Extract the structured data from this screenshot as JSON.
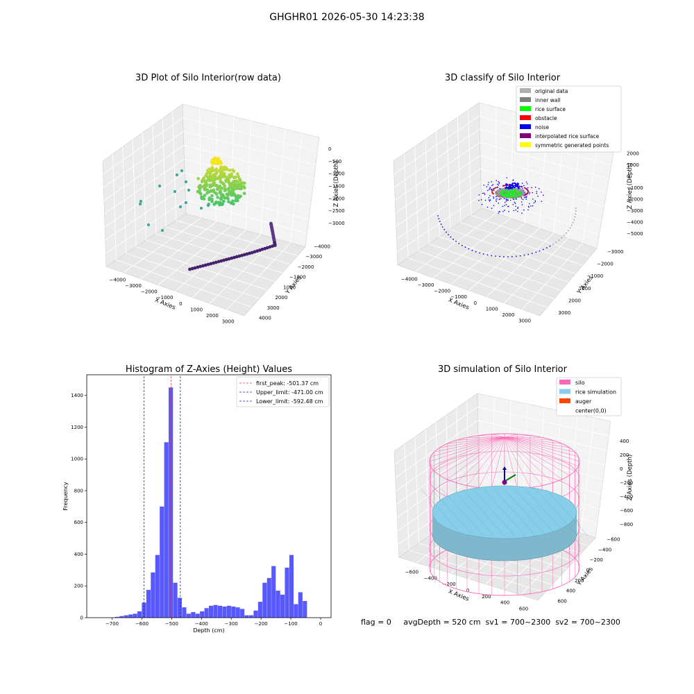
{
  "figure": {
    "title": "GHGHR01 2026-05-30 14:23:38",
    "status_text": "flag = 0     avgDepth = 520 cm  sv1 = 700~2300  sv2 = 700~2300"
  },
  "colors": {
    "hist_bar": "#4f4fff",
    "first_peak": "#e8322a",
    "limit_line": "#1f1fd0",
    "pane": "#f2f2f2",
    "silo": "#ff69b4",
    "rice": "#87ceeb",
    "auger": "#ff4500"
  },
  "chart_data": [
    {
      "type": "scatter",
      "subtype": "3d",
      "title": "3D Plot of Silo Interior(row data)",
      "xlabel": "X Axies",
      "ylabel": "Y Axies",
      "zlabel": "Z Axies (Depth)",
      "xticks": [
        "−4000",
        "−3000",
        "−2000",
        "−1000",
        "0",
        "1000",
        "2000",
        "3000"
      ],
      "yticks": [
        "4000",
        "3000",
        "2000",
        "1000",
        "−1000",
        "−2000",
        "−3000",
        "−4000"
      ],
      "zticks": [
        "0",
        "−500",
        "−1000",
        "−1500",
        "−2000",
        "−2500",
        "−3000"
      ],
      "colormap": "viridis",
      "grid": true
    },
    {
      "type": "scatter",
      "subtype": "3d",
      "title": "3D classify of Silo Interior",
      "xlabel": "X Axies",
      "ylabel": "Y Axies",
      "zlabel": "Z Axies (Depth)",
      "xticks": [
        "−4000",
        "−3000",
        "−2000",
        "−1000",
        "0",
        "1000",
        "2000",
        "3000"
      ],
      "yticks": [
        "3000",
        "2000",
        "1000",
        "−1000",
        "−2000",
        "−3000"
      ],
      "zticks": [
        "2000",
        "1000",
        "0",
        "−1000",
        "−2000",
        "−3000",
        "−4000",
        "−5000"
      ],
      "legend_position": "top-right",
      "legend": [
        {
          "label": "original data",
          "color": "#b0b0b0"
        },
        {
          "label": "inner wall",
          "color": "#808080"
        },
        {
          "label": "rice surface",
          "color": "#00ff00"
        },
        {
          "label": "obstacle",
          "color": "#ff0000"
        },
        {
          "label": "noise",
          "color": "#0000ff"
        },
        {
          "label": "interpolated rice surface",
          "color": "#800080"
        },
        {
          "label": "symmetric generated points",
          "color": "#ffff00"
        }
      ],
      "grid": true
    },
    {
      "type": "bar",
      "subtype": "histogram",
      "title": "Histogram of Z-Axies (Height) Values",
      "xlabel": "Depth (cm)",
      "ylabel": "Frequency",
      "xlim": [
        -785,
        35
      ],
      "ylim": [
        0,
        1530
      ],
      "bin_width": 15,
      "bins": [
        {
          "x": -690,
          "h": 5
        },
        {
          "x": -675,
          "h": 10
        },
        {
          "x": -660,
          "h": 15
        },
        {
          "x": -645,
          "h": 20
        },
        {
          "x": -630,
          "h": 25
        },
        {
          "x": -615,
          "h": 40
        },
        {
          "x": -600,
          "h": 95
        },
        {
          "x": -585,
          "h": 175
        },
        {
          "x": -570,
          "h": 285
        },
        {
          "x": -555,
          "h": 395
        },
        {
          "x": -540,
          "h": 700
        },
        {
          "x": -525,
          "h": 1105
        },
        {
          "x": -510,
          "h": 1450
        },
        {
          "x": -495,
          "h": 220
        },
        {
          "x": -480,
          "h": 125
        },
        {
          "x": -465,
          "h": 65
        },
        {
          "x": -450,
          "h": 25
        },
        {
          "x": -435,
          "h": 35
        },
        {
          "x": -420,
          "h": 25
        },
        {
          "x": -405,
          "h": 40
        },
        {
          "x": -390,
          "h": 60
        },
        {
          "x": -375,
          "h": 75
        },
        {
          "x": -360,
          "h": 80
        },
        {
          "x": -345,
          "h": 75
        },
        {
          "x": -330,
          "h": 70
        },
        {
          "x": -315,
          "h": 75
        },
        {
          "x": -300,
          "h": 70
        },
        {
          "x": -285,
          "h": 65
        },
        {
          "x": -270,
          "h": 55
        },
        {
          "x": -255,
          "h": 15
        },
        {
          "x": -240,
          "h": 15
        },
        {
          "x": -225,
          "h": 45
        },
        {
          "x": -210,
          "h": 100
        },
        {
          "x": -195,
          "h": 220
        },
        {
          "x": -180,
          "h": 250
        },
        {
          "x": -165,
          "h": 325
        },
        {
          "x": -150,
          "h": 170
        },
        {
          "x": -135,
          "h": 145
        },
        {
          "x": -120,
          "h": 315
        },
        {
          "x": -105,
          "h": 395
        },
        {
          "x": -90,
          "h": 85
        },
        {
          "x": -75,
          "h": 160
        },
        {
          "x": -60,
          "h": 105
        }
      ],
      "xticks": [
        -700,
        -600,
        -500,
        -400,
        -300,
        -200,
        -100,
        0
      ],
      "yticks": [
        0,
        200,
        400,
        600,
        800,
        1000,
        1200,
        1400
      ],
      "vlines": [
        {
          "x": -501.37,
          "label": "first_peak: -501.37 cm",
          "style": "peak"
        },
        {
          "x": -471.0,
          "label": "Upper_limit: -471.00 cm",
          "style": "limit"
        },
        {
          "x": -592.48,
          "label": "Lower_limit: -592.48 cm",
          "style": "limit"
        }
      ],
      "legend_position": "top-right"
    },
    {
      "type": "scatter",
      "subtype": "3d-surface",
      "title": "3D simulation of Silo Interior",
      "xlabel": "X Axies",
      "ylabel": "Y Axies",
      "zlabel": "Z Axies (Depth)",
      "xticks": [
        "−600",
        "−400",
        "−200",
        "0",
        "200",
        "400",
        "600"
      ],
      "yticks": [
        "600",
        "400",
        "200",
        "0",
        "−200",
        "−400",
        "−600"
      ],
      "zticks": [
        "400",
        "200",
        "0",
        "−200",
        "−400",
        "−600",
        "−800"
      ],
      "legend_position": "top-right",
      "legend": [
        {
          "label": "silo",
          "color": "#ff69b4"
        },
        {
          "label": "rice simulation",
          "color": "#87ceeb"
        },
        {
          "label": "auger",
          "color": "#ff4500"
        },
        {
          "label": "center(0,0)",
          "color": "none"
        }
      ],
      "grid": true
    }
  ]
}
